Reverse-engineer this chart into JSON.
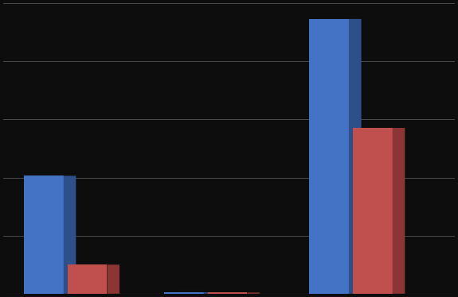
{
  "groups": 3,
  "blue_values": [
    406,
    5,
    946
  ],
  "red_values": [
    100,
    4,
    571
  ],
  "blue_color": "#4472C4",
  "blue_top_color": "#5B8ED6",
  "blue_side_color": "#2E508A",
  "red_color": "#C0504D",
  "red_top_color": "#CC6B68",
  "red_side_color": "#8B3634",
  "background_color": "#0D0D0D",
  "grid_color": "#4A4A4A",
  "bar_width": 0.38,
  "bar_gap": 0.04,
  "group_positions": [
    0.55,
    1.9,
    3.3
  ],
  "depth_x": 0.12,
  "depth_y": 0.06,
  "ylim": [
    0,
    1000
  ],
  "xlim": [
    -0.05,
    4.3
  ],
  "grid_levels": [
    0,
    200,
    400,
    600,
    800,
    1000
  ],
  "n_gridlines": 6
}
